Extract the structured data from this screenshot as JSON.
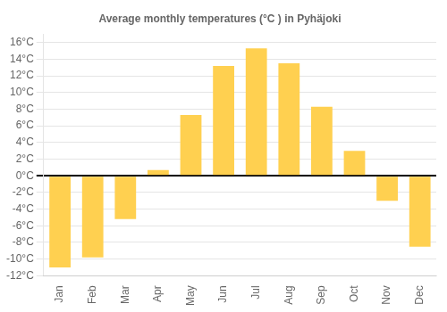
{
  "chart_data": {
    "type": "bar",
    "title": "Average monthly temperatures (°C ) in Pyhäjoki",
    "categories": [
      "Jan",
      "Feb",
      "Mar",
      "Apr",
      "May",
      "Jun",
      "Jul",
      "Aug",
      "Sep",
      "Oct",
      "Nov",
      "Dec"
    ],
    "values": [
      -11,
      -9.8,
      -5.2,
      0.7,
      7.3,
      13.2,
      15.3,
      13.5,
      8.3,
      3.0,
      -3.0,
      -8.5
    ],
    "color": "#FFD050",
    "ylim": [
      -12,
      17
    ],
    "yticks": [
      {
        "value": -12,
        "label": "-12°C"
      },
      {
        "value": -10,
        "label": "-10°C"
      },
      {
        "value": -8,
        "label": "-8°C"
      },
      {
        "value": -6,
        "label": "-6°C"
      },
      {
        "value": -4,
        "label": "-4°C"
      },
      {
        "value": -2,
        "label": "-2°C"
      },
      {
        "value": 0,
        "label": "0°C"
      },
      {
        "value": 2,
        "label": "2°C"
      },
      {
        "value": 4,
        "label": "4°C"
      },
      {
        "value": 6,
        "label": "6°C"
      },
      {
        "value": 8,
        "label": "8°C"
      },
      {
        "value": 10,
        "label": "10°C"
      },
      {
        "value": 12,
        "label": "12°C"
      },
      {
        "value": 14,
        "label": "14°C"
      },
      {
        "value": 16,
        "label": "16°C"
      }
    ],
    "grid": true
  }
}
